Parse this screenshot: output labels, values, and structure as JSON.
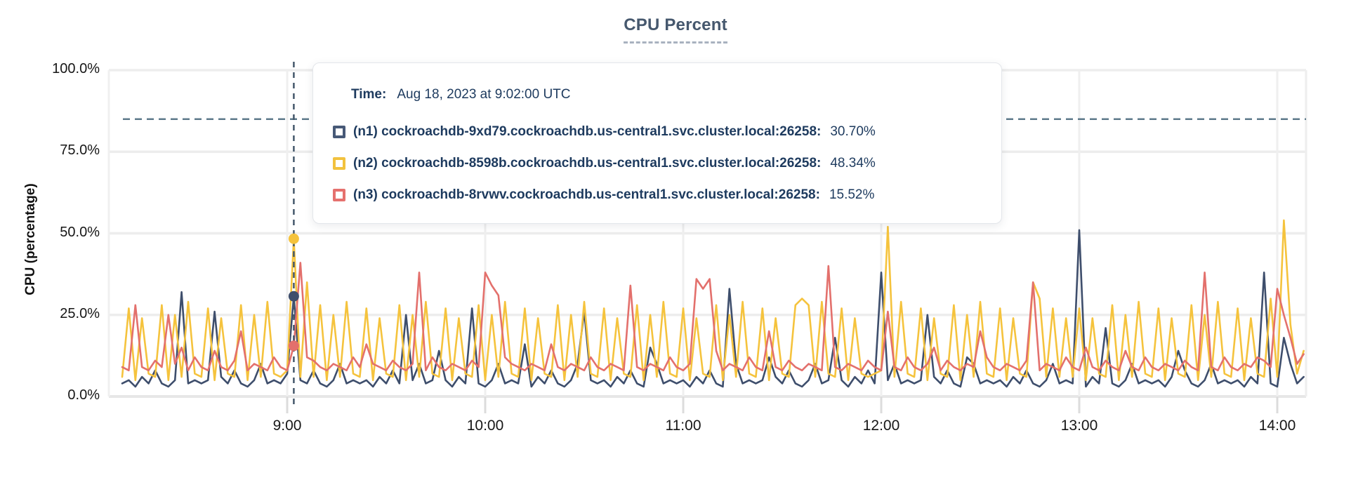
{
  "title": "CPU Percent",
  "tooltip": {
    "time_label": "Time:",
    "time_value": "Aug 18, 2023 at 9:02:00 UTC",
    "rows": [
      {
        "name": "(n1) cockroachdb-9xd79.cockroachdb.us-central1.svc.cluster.local:26258:",
        "value": "30.70%",
        "color": "#475977"
      },
      {
        "name": "(n2) cockroachdb-8598b.cockroachdb.us-central1.svc.cluster.local:26258:",
        "value": "48.34%",
        "color": "#f2c23e"
      },
      {
        "name": "(n3) cockroachdb-8rvwv.cockroachdb.us-central1.svc.cluster.local:26258:",
        "value": "15.52%",
        "color": "#e5716e"
      }
    ]
  },
  "chart_data": {
    "type": "line",
    "title": "CPU Percent",
    "xlabel": "",
    "ylabel": "CPU (percentage)",
    "ylim": [
      0,
      100
    ],
    "grid": true,
    "legend_position": "tooltip-overlay",
    "x_start_minutes": 490,
    "x_step_minutes": 2,
    "x_ticks": [
      {
        "label": "9:00",
        "minutes": 540
      },
      {
        "label": "10:00",
        "minutes": 600
      },
      {
        "label": "11:00",
        "minutes": 660
      },
      {
        "label": "12:00",
        "minutes": 720
      },
      {
        "label": "13:00",
        "minutes": 780
      },
      {
        "label": "14:00",
        "minutes": 840
      }
    ],
    "y_ticks": [
      {
        "label": "0.0%",
        "pct": 0
      },
      {
        "label": "25.0%",
        "pct": 25
      },
      {
        "label": "50.0%",
        "pct": 50
      },
      {
        "label": "75.0%",
        "pct": 75
      },
      {
        "label": "100.0%",
        "pct": 100
      }
    ],
    "threshold": {
      "pct": 85,
      "color": "#5e7a8b"
    },
    "hover": {
      "minutes": 542,
      "time": "Aug 18, 2023 at 9:02:00 UTC",
      "crosshair_color": "#44586b",
      "points": [
        {
          "series": "n1",
          "value": 30.7
        },
        {
          "series": "n2",
          "value": 48.34
        },
        {
          "series": "n3",
          "value": 15.52
        }
      ]
    },
    "series": [
      {
        "id": "n1",
        "name": "cockroachdb-9xd79.cockroachdb.us-central1.svc.cluster.local:26258",
        "color": "#3e4e6c",
        "values": [
          4,
          5,
          3,
          6,
          4,
          8,
          4,
          3,
          5,
          32,
          4,
          5,
          4,
          5,
          26,
          6,
          4,
          8,
          4,
          3,
          5,
          10,
          4,
          5,
          4,
          7,
          30.7,
          5,
          4,
          8,
          4,
          3,
          5,
          10,
          4,
          5,
          4,
          5,
          3,
          6,
          4,
          8,
          4,
          25,
          5,
          10,
          4,
          5,
          14,
          5,
          3,
          6,
          4,
          27,
          4,
          3,
          5,
          10,
          4,
          5,
          4,
          16,
          3,
          6,
          4,
          8,
          4,
          3,
          5,
          10,
          26,
          5,
          4,
          5,
          3,
          6,
          4,
          8,
          4,
          3,
          15,
          10,
          4,
          5,
          4,
          5,
          3,
          6,
          4,
          8,
          4,
          3,
          33,
          10,
          4,
          5,
          4,
          5,
          12,
          6,
          4,
          8,
          4,
          3,
          5,
          10,
          4,
          5,
          18,
          5,
          3,
          6,
          4,
          8,
          4,
          38,
          5,
          10,
          4,
          5,
          4,
          5,
          25,
          6,
          4,
          8,
          4,
          3,
          12,
          10,
          4,
          5,
          4,
          5,
          3,
          6,
          4,
          8,
          4,
          3,
          5,
          10,
          4,
          5,
          4,
          51,
          3,
          6,
          4,
          21,
          4,
          3,
          5,
          10,
          4,
          5,
          4,
          5,
          3,
          6,
          14,
          8,
          4,
          3,
          5,
          10,
          4,
          5,
          4,
          5,
          3,
          6,
          4,
          38,
          4,
          3,
          18,
          10,
          4,
          6
        ]
      },
      {
        "id": "n2",
        "name": "cockroachdb-8598b.cockroachdb.us-central1.svc.cluster.local:26258",
        "color": "#f5c33d",
        "values": [
          6,
          27,
          5,
          24,
          7,
          6,
          28,
          5,
          25,
          6,
          29,
          7,
          6,
          27,
          5,
          24,
          7,
          6,
          28,
          5,
          25,
          6,
          29,
          7,
          6,
          8,
          48.3,
          6,
          35,
          6,
          28,
          5,
          25,
          6,
          29,
          7,
          6,
          27,
          5,
          24,
          7,
          6,
          28,
          5,
          25,
          6,
          29,
          7,
          6,
          27,
          5,
          24,
          7,
          6,
          28,
          5,
          25,
          6,
          29,
          7,
          6,
          27,
          5,
          24,
          7,
          6,
          28,
          5,
          25,
          6,
          29,
          7,
          6,
          27,
          5,
          24,
          7,
          6,
          28,
          5,
          25,
          6,
          29,
          7,
          6,
          27,
          5,
          24,
          7,
          6,
          28,
          5,
          25,
          6,
          29,
          7,
          6,
          27,
          5,
          24,
          7,
          6,
          28,
          30,
          28,
          6,
          29,
          7,
          6,
          27,
          5,
          24,
          7,
          6,
          7,
          8,
          52,
          6,
          29,
          7,
          6,
          27,
          5,
          24,
          7,
          6,
          28,
          5,
          25,
          6,
          29,
          7,
          6,
          27,
          5,
          24,
          7,
          6,
          35,
          30,
          6,
          27,
          6,
          24,
          6,
          27,
          5,
          24,
          7,
          6,
          28,
          5,
          25,
          6,
          29,
          7,
          6,
          27,
          5,
          24,
          7,
          6,
          28,
          5,
          25,
          6,
          29,
          7,
          6,
          27,
          5,
          24,
          7,
          6,
          30,
          6,
          54,
          22,
          7,
          14
        ]
      },
      {
        "id": "n3",
        "name": "cockroachdb-8rvwv.cockroachdb.us-central1.svc.cluster.local:26258",
        "color": "#e3706c",
        "values": [
          9,
          8,
          28,
          9,
          8,
          11,
          9,
          25,
          10,
          15,
          8,
          12,
          9,
          8,
          14,
          9,
          8,
          11,
          20,
          8,
          10,
          9,
          8,
          12,
          9,
          8,
          15.5,
          41,
          12,
          11,
          9,
          8,
          10,
          9,
          8,
          12,
          9,
          16,
          10,
          9,
          8,
          11,
          9,
          8,
          10,
          38,
          8,
          12,
          9,
          8,
          10,
          9,
          8,
          11,
          9,
          38,
          34,
          31,
          12,
          10,
          9,
          8,
          10,
          9,
          8,
          16,
          9,
          8,
          10,
          9,
          8,
          12,
          9,
          8,
          10,
          9,
          8,
          34,
          9,
          8,
          10,
          9,
          8,
          12,
          9,
          8,
          10,
          36,
          33,
          36,
          14,
          8,
          10,
          9,
          8,
          12,
          9,
          8,
          20,
          9,
          8,
          11,
          9,
          8,
          10,
          9,
          8,
          40,
          9,
          8,
          10,
          9,
          8,
          11,
          9,
          8,
          26,
          9,
          8,
          12,
          9,
          8,
          10,
          15,
          8,
          11,
          9,
          8,
          10,
          9,
          20,
          12,
          9,
          8,
          10,
          9,
          8,
          11,
          35,
          8,
          10,
          9,
          8,
          12,
          9,
          8,
          15,
          9,
          8,
          11,
          9,
          8,
          14,
          9,
          8,
          12,
          9,
          8,
          10,
          9,
          8,
          11,
          9,
          8,
          38,
          9,
          8,
          12,
          9,
          8,
          10,
          9,
          12,
          11,
          9,
          33,
          25,
          18,
          10,
          13
        ]
      }
    ]
  }
}
